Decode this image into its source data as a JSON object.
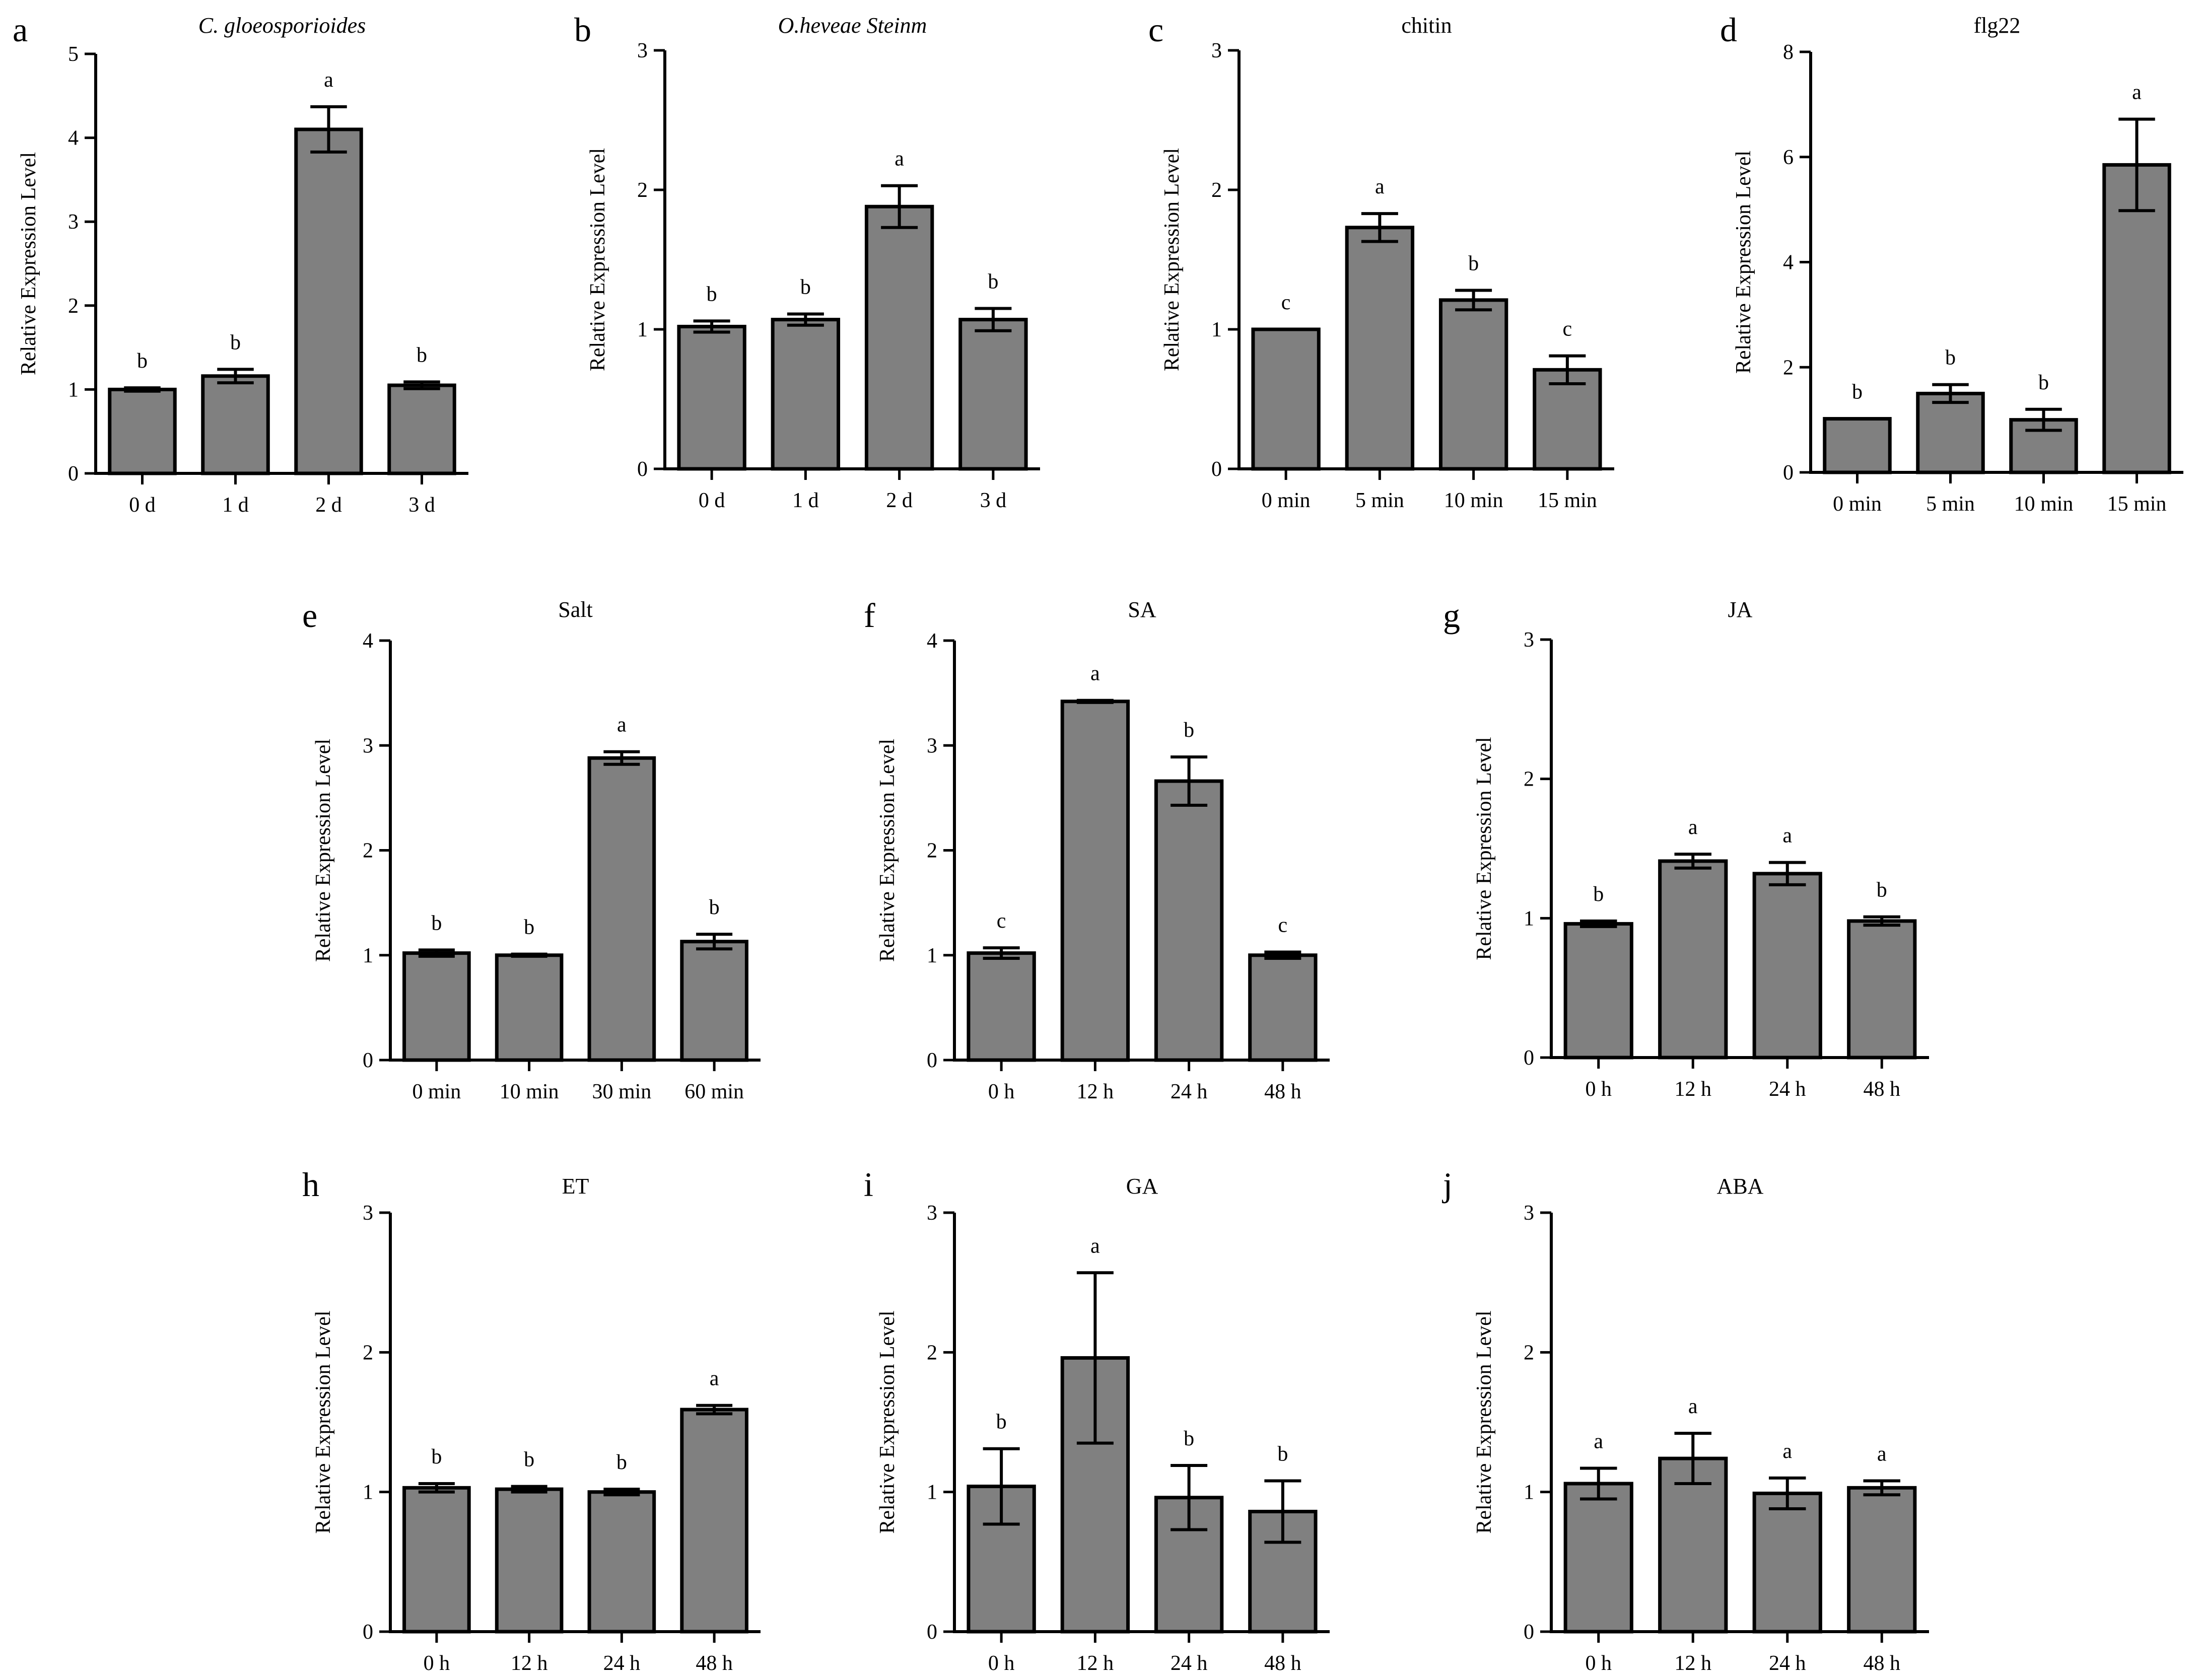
{
  "chart_data": [
    {
      "letter": "a",
      "type": "bar",
      "title": "C. gloeosporioides",
      "title_italic": true,
      "ylabel": "Relative Expression Level",
      "ylim": [
        0,
        5
      ],
      "yticks": [
        0,
        1,
        2,
        3,
        4,
        5
      ],
      "categories": [
        "0 d",
        "1 d",
        "2 d",
        "3 d"
      ],
      "values": [
        1.0,
        1.16,
        4.1,
        1.05
      ],
      "errors": [
        0.02,
        0.08,
        0.27,
        0.04
      ],
      "significance": [
        "b",
        "b",
        "a",
        "b"
      ]
    },
    {
      "letter": "b",
      "type": "bar",
      "title": "O.heveae Steinm",
      "title_italic": true,
      "ylabel": "Relative Expression Level",
      "ylim": [
        0,
        3
      ],
      "yticks": [
        0,
        1,
        2,
        3
      ],
      "categories": [
        "0 d",
        "1 d",
        "2 d",
        "3 d"
      ],
      "values": [
        1.02,
        1.07,
        1.88,
        1.07
      ],
      "errors": [
        0.04,
        0.04,
        0.15,
        0.08
      ],
      "significance": [
        "b",
        "b",
        "a",
        "b"
      ]
    },
    {
      "letter": "c",
      "type": "bar",
      "title": "chitin",
      "title_italic": false,
      "ylabel": "Relative Expression Level",
      "ylim": [
        0,
        3
      ],
      "yticks": [
        0,
        1,
        2,
        3
      ],
      "categories": [
        "0 min",
        "5 min",
        "10 min",
        "15 min"
      ],
      "values": [
        1.0,
        1.73,
        1.21,
        0.71
      ],
      "errors": [
        0.0,
        0.1,
        0.07,
        0.1
      ],
      "significance": [
        "c",
        "a",
        "b",
        "c"
      ]
    },
    {
      "letter": "d",
      "type": "bar",
      "title": "flg22",
      "title_italic": false,
      "ylabel": "Relative Expression Level",
      "ylim": [
        0,
        8
      ],
      "yticks": [
        0,
        2,
        4,
        6,
        8
      ],
      "categories": [
        "0 min",
        "5 min",
        "10 min",
        "15 min"
      ],
      "values": [
        1.02,
        1.5,
        1.0,
        5.85
      ],
      "errors": [
        0.0,
        0.17,
        0.2,
        0.87
      ],
      "significance": [
        "b",
        "b",
        "b",
        "a"
      ]
    },
    {
      "letter": "e",
      "type": "bar",
      "title": "Salt",
      "title_italic": false,
      "ylabel": "Relative Expression Level",
      "ylim": [
        0,
        4
      ],
      "yticks": [
        0,
        1,
        2,
        3,
        4
      ],
      "categories": [
        "0 min",
        "10 min",
        "30 min",
        "60 min"
      ],
      "values": [
        1.02,
        1.0,
        2.88,
        1.13
      ],
      "errors": [
        0.03,
        0.01,
        0.06,
        0.07
      ],
      "significance": [
        "b",
        "b",
        "a",
        "b"
      ]
    },
    {
      "letter": "f",
      "type": "bar",
      "title": "SA",
      "title_italic": false,
      "ylabel": "Relative Expression Level",
      "ylim": [
        0,
        4
      ],
      "yticks": [
        0,
        1,
        2,
        3,
        4
      ],
      "categories": [
        "0 h",
        "12 h",
        "24 h",
        "48 h"
      ],
      "values": [
        1.02,
        3.42,
        2.66,
        1.0
      ],
      "errors": [
        0.05,
        0.01,
        0.23,
        0.03
      ],
      "significance": [
        "c",
        "a",
        "b",
        "c"
      ]
    },
    {
      "letter": "g",
      "type": "bar",
      "title": "JA",
      "title_italic": false,
      "ylabel": "Relative Expression Level",
      "ylim": [
        0,
        3
      ],
      "yticks": [
        0,
        1,
        2,
        3
      ],
      "categories": [
        "0 h",
        "12 h",
        "24 h",
        "48 h"
      ],
      "values": [
        0.96,
        1.41,
        1.32,
        0.98
      ],
      "errors": [
        0.02,
        0.05,
        0.08,
        0.03
      ],
      "significance": [
        "b",
        "a",
        "a",
        "b"
      ]
    },
    {
      "letter": "h",
      "type": "bar",
      "title": "ET",
      "title_italic": false,
      "ylabel": "Relative Expression Level",
      "ylim": [
        0,
        3
      ],
      "yticks": [
        0,
        1,
        2,
        3
      ],
      "categories": [
        "0 h",
        "12 h",
        "24 h",
        "48 h"
      ],
      "values": [
        1.03,
        1.02,
        1.0,
        1.59
      ],
      "errors": [
        0.03,
        0.02,
        0.02,
        0.03
      ],
      "significance": [
        "b",
        "b",
        "b",
        "a"
      ]
    },
    {
      "letter": "i",
      "type": "bar",
      "title": "GA",
      "title_italic": false,
      "ylabel": "Relative Expression Level",
      "ylim": [
        0,
        3
      ],
      "yticks": [
        0,
        1,
        2,
        3
      ],
      "categories": [
        "0 h",
        "12 h",
        "24 h",
        "48 h"
      ],
      "values": [
        1.04,
        1.96,
        0.96,
        0.86
      ],
      "errors": [
        0.27,
        0.61,
        0.23,
        0.22
      ],
      "significance": [
        "b",
        "a",
        "b",
        "b"
      ]
    },
    {
      "letter": "j",
      "type": "bar",
      "title": "ABA",
      "title_italic": false,
      "ylabel": "Relative Expression Level",
      "ylim": [
        0,
        3
      ],
      "yticks": [
        0,
        1,
        2,
        3
      ],
      "categories": [
        "0 h",
        "12 h",
        "24 h",
        "48 h"
      ],
      "values": [
        1.06,
        1.24,
        0.99,
        1.03
      ],
      "errors": [
        0.11,
        0.18,
        0.11,
        0.05
      ],
      "significance": [
        "a",
        "a",
        "a",
        "a"
      ]
    }
  ],
  "colors": {
    "bar_fill": "#808080",
    "stroke": "#000000",
    "background": "#ffffff"
  }
}
